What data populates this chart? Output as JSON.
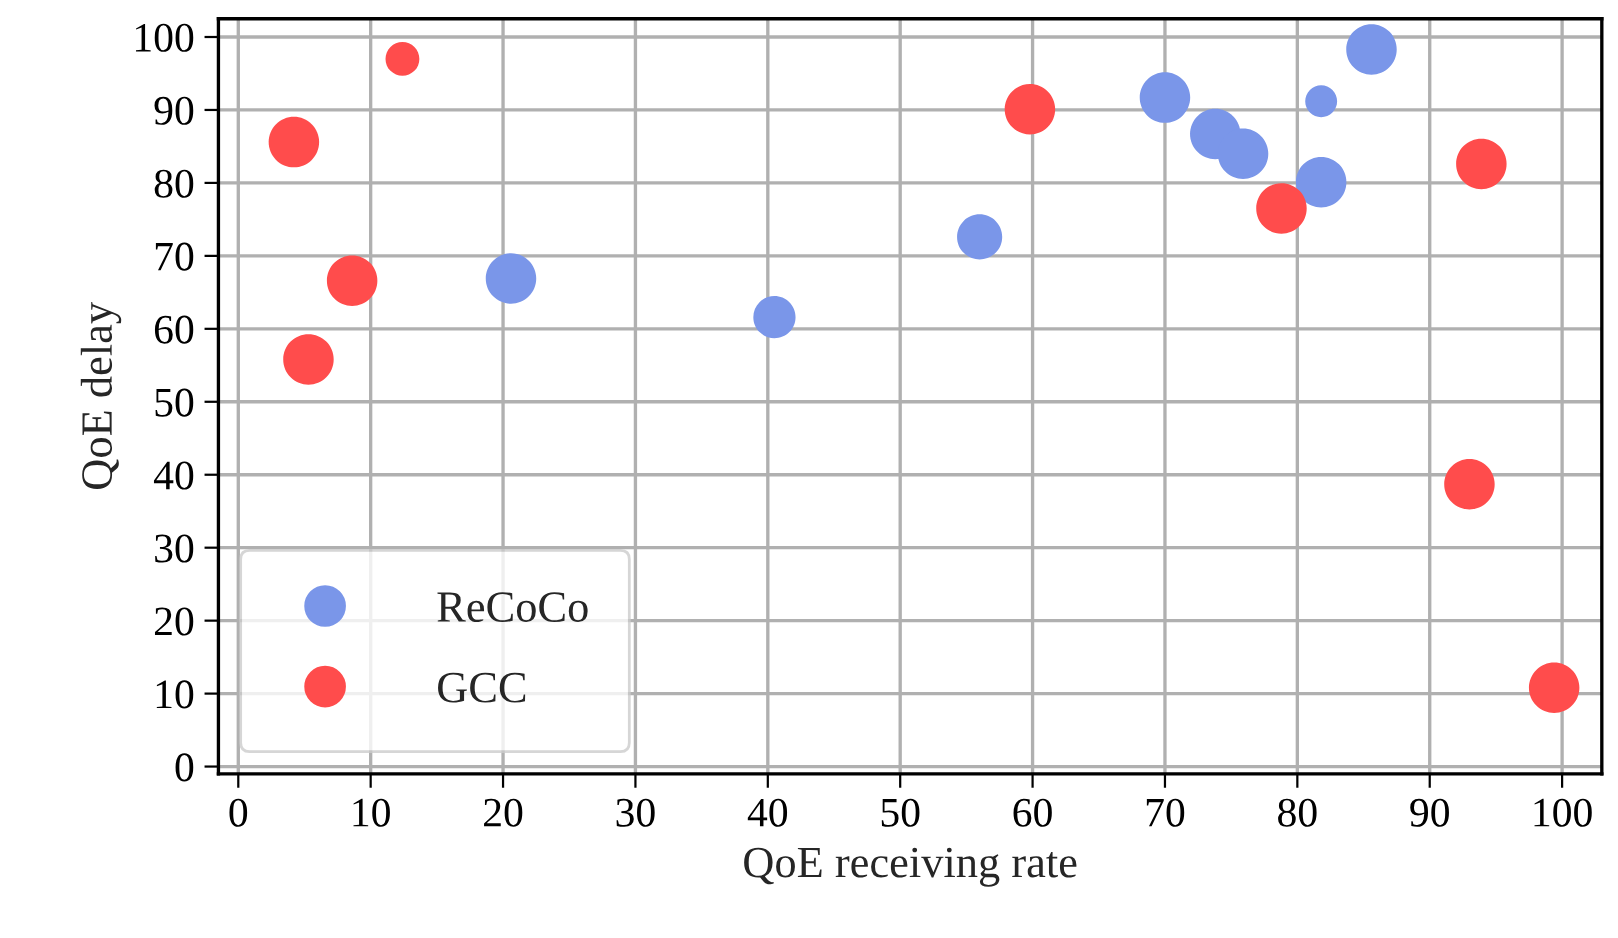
{
  "chart_data": {
    "type": "bubble",
    "xlabel": "QoE receiving rate",
    "ylabel": "QoE delay",
    "xlim": [
      -1.5,
      103
    ],
    "ylim": [
      -1,
      102.5
    ],
    "xticks": [
      0,
      10,
      20,
      30,
      40,
      50,
      60,
      70,
      80,
      90,
      100
    ],
    "yticks": [
      0,
      10,
      20,
      30,
      40,
      50,
      60,
      70,
      80,
      90,
      100
    ],
    "grid": true,
    "legend": "bottom left",
    "marker": "circle",
    "series": [
      {
        "name": "ReCoCo",
        "color": "#7a96e9",
        "x": [
          20.6,
          40.5,
          56,
          70,
          73.8,
          75.9,
          81.8,
          81.8,
          85.6
        ],
        "values": [
          66.9,
          61.6,
          72.6,
          91.7,
          86.7,
          84,
          91.2,
          80.1,
          98.3
        ],
        "sizes": [
          1,
          0.7,
          0.8,
          1,
          1,
          1,
          0.4,
          1,
          1
        ]
      },
      {
        "name": "GCC",
        "color": "#ff4c4c",
        "x": [
          4.2,
          5.3,
          8.6,
          12.4,
          59.8,
          78.8,
          93,
          93.9,
          99.4
        ],
        "values": [
          85.6,
          55.8,
          66.6,
          97,
          90.1,
          76.5,
          38.7,
          82.6,
          10.8
        ],
        "sizes": [
          1,
          1,
          1,
          0.45,
          1,
          1,
          1,
          1,
          1
        ]
      }
    ]
  }
}
